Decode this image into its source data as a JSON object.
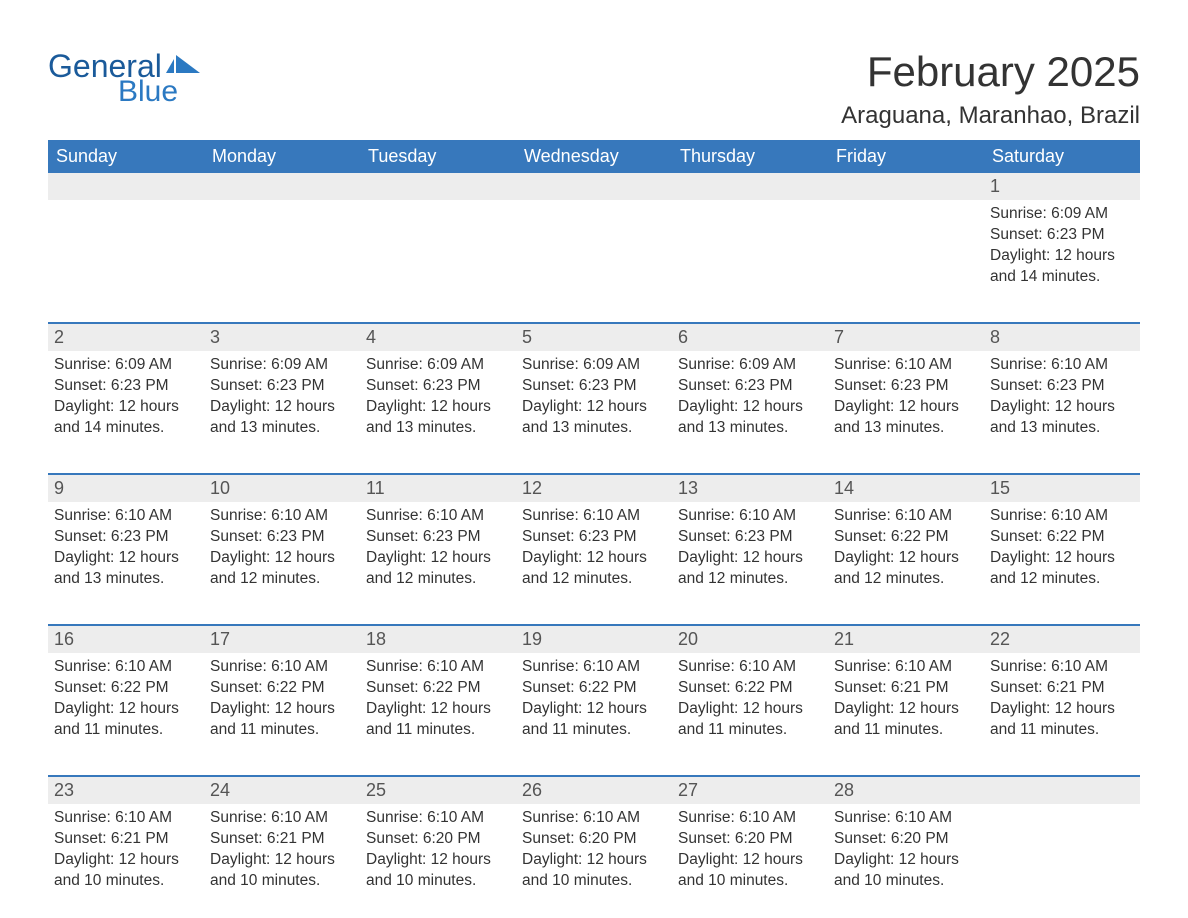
{
  "logo": {
    "word1": "General",
    "word2": "Blue",
    "flag_color": "#2b79c2"
  },
  "title": "February 2025",
  "location": "Araguana, Maranhao, Brazil",
  "colors": {
    "header_bg": "#3778bc",
    "header_text": "#ffffff",
    "daynum_bg": "#ededed",
    "border": "#3778bc",
    "text": "#333333"
  },
  "day_headers": [
    "Sunday",
    "Monday",
    "Tuesday",
    "Wednesday",
    "Thursday",
    "Friday",
    "Saturday"
  ],
  "weeks": [
    [
      {
        "n": "",
        "sr": "",
        "ss": "",
        "dl": ""
      },
      {
        "n": "",
        "sr": "",
        "ss": "",
        "dl": ""
      },
      {
        "n": "",
        "sr": "",
        "ss": "",
        "dl": ""
      },
      {
        "n": "",
        "sr": "",
        "ss": "",
        "dl": ""
      },
      {
        "n": "",
        "sr": "",
        "ss": "",
        "dl": ""
      },
      {
        "n": "",
        "sr": "",
        "ss": "",
        "dl": ""
      },
      {
        "n": "1",
        "sr": "Sunrise: 6:09 AM",
        "ss": "Sunset: 6:23 PM",
        "dl": "Daylight: 12 hours and 14 minutes."
      }
    ],
    [
      {
        "n": "2",
        "sr": "Sunrise: 6:09 AM",
        "ss": "Sunset: 6:23 PM",
        "dl": "Daylight: 12 hours and 14 minutes."
      },
      {
        "n": "3",
        "sr": "Sunrise: 6:09 AM",
        "ss": "Sunset: 6:23 PM",
        "dl": "Daylight: 12 hours and 13 minutes."
      },
      {
        "n": "4",
        "sr": "Sunrise: 6:09 AM",
        "ss": "Sunset: 6:23 PM",
        "dl": "Daylight: 12 hours and 13 minutes."
      },
      {
        "n": "5",
        "sr": "Sunrise: 6:09 AM",
        "ss": "Sunset: 6:23 PM",
        "dl": "Daylight: 12 hours and 13 minutes."
      },
      {
        "n": "6",
        "sr": "Sunrise: 6:09 AM",
        "ss": "Sunset: 6:23 PM",
        "dl": "Daylight: 12 hours and 13 minutes."
      },
      {
        "n": "7",
        "sr": "Sunrise: 6:10 AM",
        "ss": "Sunset: 6:23 PM",
        "dl": "Daylight: 12 hours and 13 minutes."
      },
      {
        "n": "8",
        "sr": "Sunrise: 6:10 AM",
        "ss": "Sunset: 6:23 PM",
        "dl": "Daylight: 12 hours and 13 minutes."
      }
    ],
    [
      {
        "n": "9",
        "sr": "Sunrise: 6:10 AM",
        "ss": "Sunset: 6:23 PM",
        "dl": "Daylight: 12 hours and 13 minutes."
      },
      {
        "n": "10",
        "sr": "Sunrise: 6:10 AM",
        "ss": "Sunset: 6:23 PM",
        "dl": "Daylight: 12 hours and 12 minutes."
      },
      {
        "n": "11",
        "sr": "Sunrise: 6:10 AM",
        "ss": "Sunset: 6:23 PM",
        "dl": "Daylight: 12 hours and 12 minutes."
      },
      {
        "n": "12",
        "sr": "Sunrise: 6:10 AM",
        "ss": "Sunset: 6:23 PM",
        "dl": "Daylight: 12 hours and 12 minutes."
      },
      {
        "n": "13",
        "sr": "Sunrise: 6:10 AM",
        "ss": "Sunset: 6:23 PM",
        "dl": "Daylight: 12 hours and 12 minutes."
      },
      {
        "n": "14",
        "sr": "Sunrise: 6:10 AM",
        "ss": "Sunset: 6:22 PM",
        "dl": "Daylight: 12 hours and 12 minutes."
      },
      {
        "n": "15",
        "sr": "Sunrise: 6:10 AM",
        "ss": "Sunset: 6:22 PM",
        "dl": "Daylight: 12 hours and 12 minutes."
      }
    ],
    [
      {
        "n": "16",
        "sr": "Sunrise: 6:10 AM",
        "ss": "Sunset: 6:22 PM",
        "dl": "Daylight: 12 hours and 11 minutes."
      },
      {
        "n": "17",
        "sr": "Sunrise: 6:10 AM",
        "ss": "Sunset: 6:22 PM",
        "dl": "Daylight: 12 hours and 11 minutes."
      },
      {
        "n": "18",
        "sr": "Sunrise: 6:10 AM",
        "ss": "Sunset: 6:22 PM",
        "dl": "Daylight: 12 hours and 11 minutes."
      },
      {
        "n": "19",
        "sr": "Sunrise: 6:10 AM",
        "ss": "Sunset: 6:22 PM",
        "dl": "Daylight: 12 hours and 11 minutes."
      },
      {
        "n": "20",
        "sr": "Sunrise: 6:10 AM",
        "ss": "Sunset: 6:22 PM",
        "dl": "Daylight: 12 hours and 11 minutes."
      },
      {
        "n": "21",
        "sr": "Sunrise: 6:10 AM",
        "ss": "Sunset: 6:21 PM",
        "dl": "Daylight: 12 hours and 11 minutes."
      },
      {
        "n": "22",
        "sr": "Sunrise: 6:10 AM",
        "ss": "Sunset: 6:21 PM",
        "dl": "Daylight: 12 hours and 11 minutes."
      }
    ],
    [
      {
        "n": "23",
        "sr": "Sunrise: 6:10 AM",
        "ss": "Sunset: 6:21 PM",
        "dl": "Daylight: 12 hours and 10 minutes."
      },
      {
        "n": "24",
        "sr": "Sunrise: 6:10 AM",
        "ss": "Sunset: 6:21 PM",
        "dl": "Daylight: 12 hours and 10 minutes."
      },
      {
        "n": "25",
        "sr": "Sunrise: 6:10 AM",
        "ss": "Sunset: 6:20 PM",
        "dl": "Daylight: 12 hours and 10 minutes."
      },
      {
        "n": "26",
        "sr": "Sunrise: 6:10 AM",
        "ss": "Sunset: 6:20 PM",
        "dl": "Daylight: 12 hours and 10 minutes."
      },
      {
        "n": "27",
        "sr": "Sunrise: 6:10 AM",
        "ss": "Sunset: 6:20 PM",
        "dl": "Daylight: 12 hours and 10 minutes."
      },
      {
        "n": "28",
        "sr": "Sunrise: 6:10 AM",
        "ss": "Sunset: 6:20 PM",
        "dl": "Daylight: 12 hours and 10 minutes."
      },
      {
        "n": "",
        "sr": "",
        "ss": "",
        "dl": ""
      }
    ]
  ]
}
